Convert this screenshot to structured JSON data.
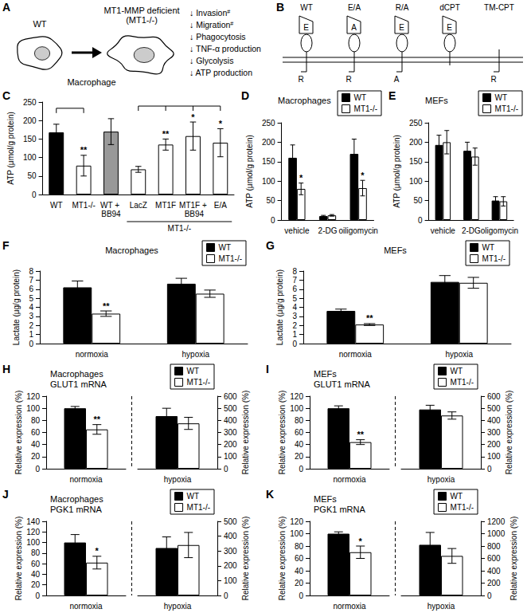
{
  "diagrams": [
    {
      "panel": "A",
      "cells": [
        [
          "WT"
        ],
        [
          "MT1-MMP deficient",
          "(MT1-/-)"
        ]
      ],
      "cell_type": "Macrophage",
      "effects": [
        {
          "text": "↓ Invasion",
          "superscript": "#"
        },
        {
          "text": "↓ Migration",
          "superscript": "#"
        },
        {
          "text": "↓ Phagocytosis"
        },
        {
          "text": "↓ TNF-α production"
        },
        {
          "text": "↓ Glycolysis"
        },
        {
          "text": "↓ ATP production"
        }
      ]
    },
    {
      "panel": "B",
      "constructs": [
        {
          "label": "WT",
          "catalytic": "E",
          "hemopexin": true,
          "tail": "R"
        },
        {
          "label": "E/A",
          "catalytic": "A",
          "hemopexin": true,
          "tail": "R"
        },
        {
          "label": "R/A",
          "catalytic": "E",
          "hemopexin": true,
          "tail": "A"
        },
        {
          "label": "dCPT",
          "catalytic": "E",
          "hemopexin": true,
          "tail": null
        },
        {
          "label": "TM-CPT",
          "catalytic": null,
          "hemopexin": false,
          "tail": "R"
        }
      ]
    }
  ],
  "chart_data": [
    {
      "panel": "C",
      "type": "bar",
      "categories": [
        "WT",
        "MT1-/-",
        "WT + BB94",
        "LacZ",
        "MT1F",
        "MT1F + BB94",
        "E/A"
      ],
      "values": [
        168,
        78,
        170,
        68,
        135,
        158,
        140
      ],
      "errors": [
        22,
        28,
        35,
        8,
        15,
        38,
        38
      ],
      "colors": [
        "#000000",
        "#ffffff",
        "#999999",
        "#ffffff",
        "#ffffff",
        "#ffffff",
        "#ffffff"
      ],
      "marks": [
        null,
        "**",
        null,
        null,
        "**",
        "*",
        "*"
      ],
      "group": {
        "label": "MT1-/-",
        "categories": [
          "LacZ",
          "MT1F",
          "MT1F + BB94",
          "E/A"
        ]
      },
      "brackets": [
        {
          "from": "WT",
          "to": [
            "MT1-/-"
          ]
        },
        {
          "from": "LacZ",
          "to": [
            "MT1F",
            "MT1F + BB94",
            "E/A"
          ]
        }
      ],
      "ylabel": "ATP (μmol/g protein)",
      "ylim": [
        0,
        250
      ],
      "yticks": [
        0,
        50,
        100,
        150,
        200,
        250
      ]
    },
    {
      "panel": "D",
      "type": "bar",
      "title": "Macrophages",
      "categories": [
        "vehicle",
        "2-DG",
        "oiligomycin"
      ],
      "series": [
        {
          "name": "WT",
          "color": "#000000",
          "values": [
            160,
            10,
            170
          ],
          "errors": [
            33,
            2,
            38
          ]
        },
        {
          "name": "MT1-/-",
          "color": "#ffffff",
          "values": [
            80,
            12,
            82
          ],
          "errors": [
            15,
            2,
            20
          ],
          "marks": [
            "*",
            null,
            "*"
          ]
        }
      ],
      "ylabel": "ATP (μmol/g protein)",
      "ylim": [
        0,
        250
      ],
      "yticks": [
        0,
        50,
        100,
        150,
        200,
        250
      ],
      "legend": "upper right"
    },
    {
      "panel": "E",
      "type": "bar",
      "title": "MEFs",
      "categories": [
        "vehicle",
        "2-DG",
        "oligomycin"
      ],
      "series": [
        {
          "name": "WT",
          "color": "#000000",
          "values": [
            193,
            178,
            50
          ],
          "errors": [
            25,
            22,
            10
          ]
        },
        {
          "name": "MT1-/-",
          "color": "#ffffff",
          "values": [
            200,
            163,
            48
          ],
          "errors": [
            30,
            22,
            12
          ]
        }
      ],
      "ylabel": "ATP (μmol/g protein)",
      "ylim": [
        0,
        250
      ],
      "yticks": [
        0,
        50,
        100,
        150,
        200,
        250
      ],
      "legend": "upper right"
    },
    {
      "panel": "F",
      "type": "bar",
      "title": "Macrophages",
      "categories": [
        "normoxia",
        "hypoxia"
      ],
      "series": [
        {
          "name": "WT",
          "color": "#000000",
          "values": [
            6.2,
            6.6
          ],
          "errors": [
            0.7,
            0.6
          ]
        },
        {
          "name": "MT1-/-",
          "color": "#ffffff",
          "values": [
            3.3,
            5.5
          ],
          "errors": [
            0.3,
            0.4
          ],
          "marks": [
            "**",
            null
          ]
        }
      ],
      "ylabel": "Lactate (μg/g protein)",
      "ylim": [
        0,
        8
      ],
      "yticks": [
        0,
        1,
        2,
        3,
        4,
        5,
        6,
        7,
        8
      ],
      "legend": "upper right"
    },
    {
      "panel": "G",
      "type": "bar",
      "title": "MEFs",
      "categories": [
        "normoxia",
        "hypoxia"
      ],
      "series": [
        {
          "name": "WT",
          "color": "#000000",
          "values": [
            3.6,
            6.8
          ],
          "errors": [
            0.2,
            0.7
          ]
        },
        {
          "name": "MT1-/-",
          "color": "#ffffff",
          "values": [
            2.1,
            6.7
          ],
          "errors": [
            0.1,
            0.6
          ],
          "marks": [
            "**",
            null
          ]
        }
      ],
      "ylabel": "Lactate (μg/g protein)",
      "ylim": [
        0,
        8
      ],
      "yticks": [
        0,
        1,
        2,
        3,
        4,
        5,
        6,
        7,
        8
      ],
      "legend": "upper right"
    },
    {
      "panel": "H",
      "type": "bar",
      "title": [
        "Macrophages",
        "GLUT1 mRNA"
      ],
      "categories": [
        "normoxia",
        "hypoxia"
      ],
      "series": [
        {
          "name": "WT",
          "color": "#000000",
          "values": [
            100,
            null
          ],
          "errors": [
            3,
            null
          ]
        },
        {
          "name": "MT1-/-",
          "color": "#ffffff",
          "values": [
            65,
            null
          ],
          "errors": [
            8,
            null
          ],
          "marks": [
            "**",
            null
          ]
        },
        {
          "name": "WT",
          "color": "#000000",
          "axis": "y2",
          "values": [
            null,
            435
          ],
          "errors": [
            null,
            65
          ]
        },
        {
          "name": "MT1-/-",
          "color": "#ffffff",
          "axis": "y2",
          "values": [
            null,
            375
          ],
          "errors": [
            null,
            50
          ]
        }
      ],
      "ylabel": "Relative expression (%)",
      "ylim": [
        0,
        120
      ],
      "yticks": [
        0,
        20,
        40,
        60,
        80,
        100,
        120
      ],
      "y2label": "Relative expression (%)",
      "y2lim": [
        0,
        600
      ],
      "y2ticks": [
        0,
        100,
        200,
        300,
        400,
        500,
        600
      ],
      "legend": "upper right"
    },
    {
      "panel": "I",
      "type": "bar",
      "title": [
        "MEFs",
        "GLUT1 mRNA"
      ],
      "categories": [
        "normoxia",
        "hypoxia"
      ],
      "series": [
        {
          "name": "WT",
          "color": "#000000",
          "values": [
            100,
            null
          ],
          "errors": [
            4,
            null
          ]
        },
        {
          "name": "MT1-/-",
          "color": "#ffffff",
          "values": [
            44,
            null
          ],
          "errors": [
            4,
            null
          ],
          "marks": [
            "**",
            null
          ]
        },
        {
          "name": "WT",
          "color": "#000000",
          "axis": "y2",
          "values": [
            null,
            490
          ],
          "errors": [
            null,
            35
          ]
        },
        {
          "name": "MT1-/-",
          "color": "#ffffff",
          "axis": "y2",
          "values": [
            null,
            440
          ],
          "errors": [
            null,
            30
          ]
        }
      ],
      "ylabel": "Relative expression (%)",
      "ylim": [
        0,
        120
      ],
      "yticks": [
        0,
        20,
        40,
        60,
        80,
        100,
        120
      ],
      "y2label": "Relative expression (%)",
      "y2lim": [
        0,
        600
      ],
      "y2ticks": [
        0,
        100,
        200,
        300,
        400,
        500,
        600
      ],
      "legend": "upper right"
    },
    {
      "panel": "J",
      "type": "bar",
      "title": [
        "Macrophages",
        "PGK1 mRNA"
      ],
      "categories": [
        "normoxia",
        "hypoxia"
      ],
      "series": [
        {
          "name": "WT",
          "color": "#000000",
          "values": [
            100,
            null
          ],
          "errors": [
            15,
            null
          ]
        },
        {
          "name": "MT1-/-",
          "color": "#ffffff",
          "values": [
            62,
            null
          ],
          "errors": [
            12,
            null
          ],
          "marks": [
            "*",
            null
          ]
        },
        {
          "name": "WT",
          "color": "#000000",
          "axis": "y2",
          "values": [
            null,
            320
          ],
          "errors": [
            null,
            75
          ]
        },
        {
          "name": "MT1-/-",
          "color": "#ffffff",
          "axis": "y2",
          "values": [
            null,
            340
          ],
          "errors": [
            null,
            85
          ]
        }
      ],
      "ylabel": "Relative expression (%)",
      "ylim": [
        0,
        140
      ],
      "yticks": [
        0,
        20,
        40,
        60,
        80,
        100,
        120,
        140
      ],
      "y2label": "Relative expression (%)",
      "y2lim": [
        0,
        500
      ],
      "y2ticks": [
        0,
        100,
        200,
        300,
        400,
        500
      ],
      "legend": "upper right"
    },
    {
      "panel": "K",
      "type": "bar",
      "title": [
        "MEFs",
        "PGK1 mRNA"
      ],
      "categories": [
        "normoxia",
        "hypoxia"
      ],
      "series": [
        {
          "name": "WT",
          "color": "#000000",
          "values": [
            100,
            null
          ],
          "errors": [
            3,
            null
          ]
        },
        {
          "name": "MT1-/-",
          "color": "#ffffff",
          "values": [
            70,
            null
          ],
          "errors": [
            10,
            null
          ],
          "marks": [
            "*",
            null
          ]
        },
        {
          "name": "WT",
          "color": "#000000",
          "axis": "y2",
          "values": [
            null,
            820
          ],
          "errors": [
            null,
            200
          ]
        },
        {
          "name": "MT1-/-",
          "color": "#ffffff",
          "axis": "y2",
          "values": [
            null,
            640
          ],
          "errors": [
            null,
            120
          ]
        }
      ],
      "ylabel": "Relative expression (%)",
      "ylim": [
        0,
        120
      ],
      "yticks": [
        0,
        20,
        40,
        60,
        80,
        100,
        120
      ],
      "y2label": "Relative expression (%)",
      "y2lim": [
        0,
        1200
      ],
      "y2ticks": [
        0,
        200,
        400,
        600,
        800,
        1000,
        1200
      ],
      "legend": "upper right"
    }
  ]
}
